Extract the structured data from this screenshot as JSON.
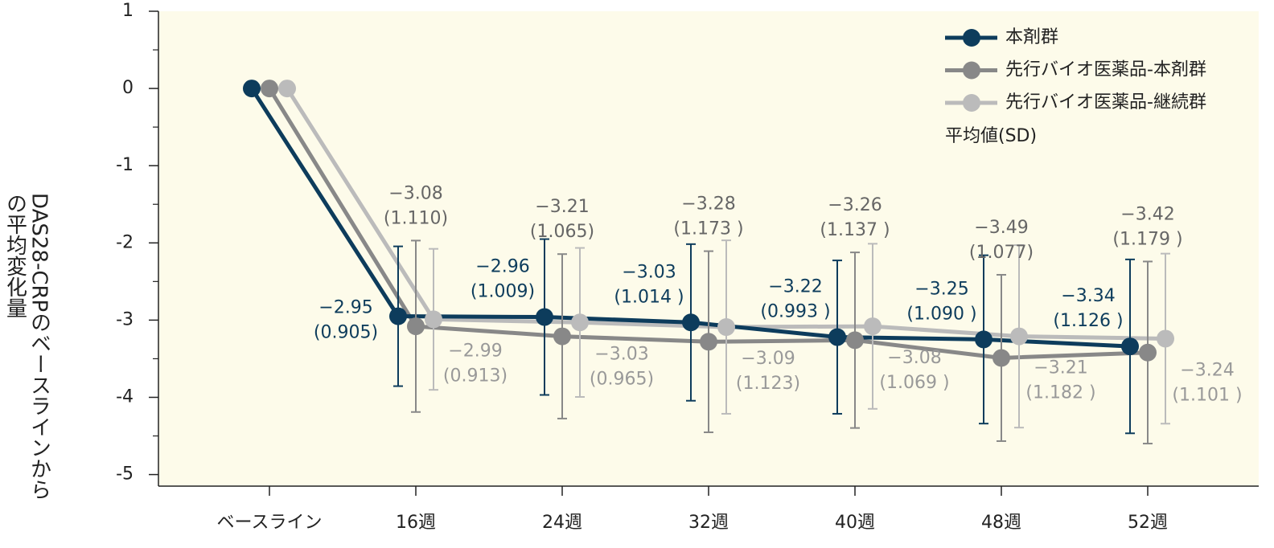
{
  "chart_data": {
    "type": "line",
    "y_label": [
      "DAS28-CRPのベースラインから",
      "の平均変化量"
    ],
    "categories": [
      "ベースライン",
      "16週",
      "24週",
      "32週",
      "40週",
      "48週",
      "52週"
    ],
    "series": [
      {
        "name": "本剤群",
        "color": "#0d3c5c",
        "values": [
          0,
          -2.95,
          -2.96,
          -3.03,
          -3.22,
          -3.25,
          -3.34
        ],
        "value_labels": [
          null,
          "−2.95",
          "−2.96",
          "−3.03",
          "−3.22",
          "−3.25",
          "−3.34"
        ],
        "errors": [
          null,
          0.905,
          1.009,
          1.014,
          0.993,
          1.09,
          1.126
        ],
        "error_labels": [
          null,
          "(0.905)",
          "(1.009)",
          "(1.014 )",
          "(0.993 )",
          "(1.090 )",
          "(1.126 )"
        ]
      },
      {
        "name": "先行バイオ医薬品-本剤群",
        "color": "#888888",
        "values": [
          0,
          -3.08,
          -3.21,
          -3.28,
          -3.26,
          -3.49,
          -3.42
        ],
        "value_labels": [
          null,
          "−3.08",
          "−3.21",
          "−3.28",
          "−3.26",
          "−3.49",
          "−3.42"
        ],
        "errors": [
          null,
          1.11,
          1.065,
          1.173,
          1.137,
          1.077,
          1.179
        ],
        "error_labels": [
          null,
          "(1.110)",
          "(1.065)",
          "(1.173 )",
          "(1.137 )",
          "(1.077)",
          "(1.179 )"
        ]
      },
      {
        "name": "先行バイオ医薬品-継続群",
        "color": "#bbbbbb",
        "values": [
          0,
          -2.99,
          -3.03,
          -3.09,
          -3.08,
          -3.21,
          -3.24
        ],
        "value_labels": [
          null,
          "−2.99",
          "−3.03",
          "−3.09",
          "−3.08",
          "−3.21",
          "−3.24"
        ],
        "errors": [
          null,
          0.913,
          0.965,
          1.123,
          1.069,
          1.182,
          1.101
        ],
        "error_labels": [
          null,
          "(0.913)",
          "(0.965)",
          "(1.123)",
          "(1.069 )",
          "(1.182 )",
          "(1.101 )"
        ]
      }
    ],
    "legend_note": "平均値(SD)",
    "ylim": [
      -5.15,
      1
    ],
    "yticks": [
      1,
      0,
      -1,
      -2,
      -3,
      -4,
      -5
    ]
  }
}
